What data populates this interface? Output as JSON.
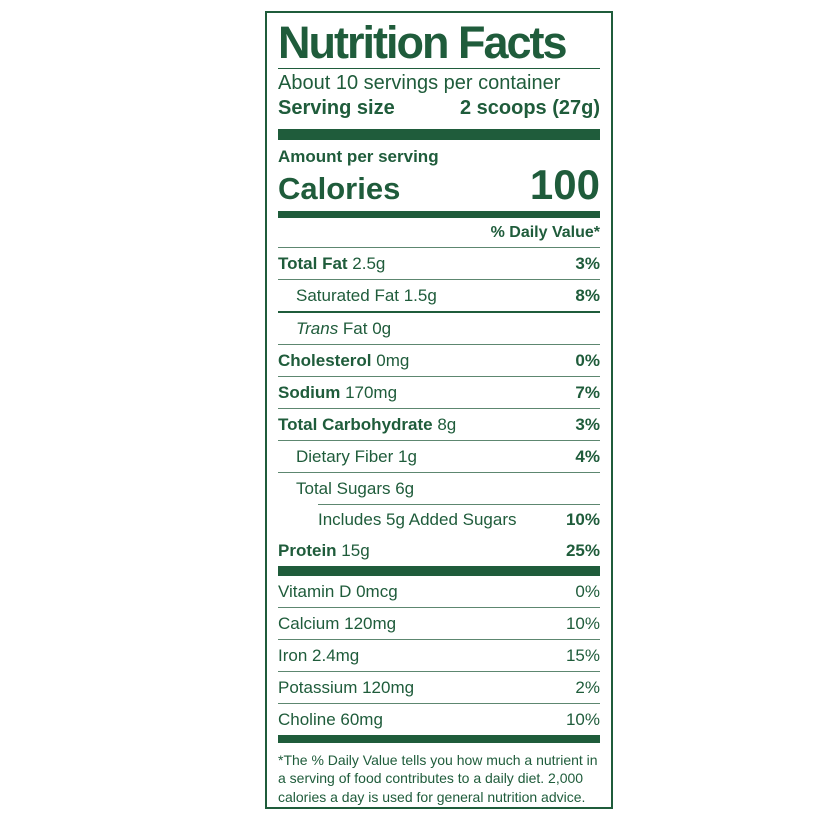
{
  "colors": {
    "label_green": "#1f5c3b",
    "hairline": "#5d8770",
    "background": "#ffffff"
  },
  "label": {
    "title": "Nutrition Facts",
    "servings_per_container": "About 10 servings per container",
    "serving_size_label": "Serving size",
    "serving_size_value": "2 scoops (27g)",
    "amount_per_serving": "Amount per serving",
    "calories_label": "Calories",
    "calories_value": "100",
    "daily_value_header": "% Daily Value*",
    "rows": [
      {
        "bold": "Total Fat",
        "rest": " 2.5g",
        "dv": "3%"
      },
      {
        "rest": "Saturated Fat 1.5g",
        "dv": "8%"
      },
      {
        "italic": "Trans",
        "rest": " Fat 0g"
      },
      {
        "bold": "Cholesterol",
        "rest": " 0mg",
        "dv": "0%"
      },
      {
        "bold": "Sodium",
        "rest": " 170mg",
        "dv": "7%"
      },
      {
        "bold": "Total Carbohydrate",
        "rest": " 8g",
        "dv": "3%"
      },
      {
        "rest": "Dietary Fiber 1g",
        "dv": "4%"
      },
      {
        "rest": "Total Sugars 6g"
      },
      {
        "rest": "Includes 5g Added Sugars",
        "dv": "10%"
      },
      {
        "bold": "Protein",
        "rest": " 15g",
        "dv": "25%"
      }
    ],
    "vitamins": [
      {
        "rest": "Vitamin D 0mcg",
        "dv": "0%"
      },
      {
        "rest": "Calcium 120mg",
        "dv": "10%"
      },
      {
        "rest": "Iron 2.4mg",
        "dv": "15%"
      },
      {
        "rest": "Potassium 120mg",
        "dv": "2%"
      },
      {
        "rest": "Choline 60mg",
        "dv": "10%"
      }
    ],
    "footnote": "*The % Daily Value tells you how much a nutrient in a serving of food contributes to a daily diet. 2,000 calories a day is used for general nutrition advice."
  }
}
